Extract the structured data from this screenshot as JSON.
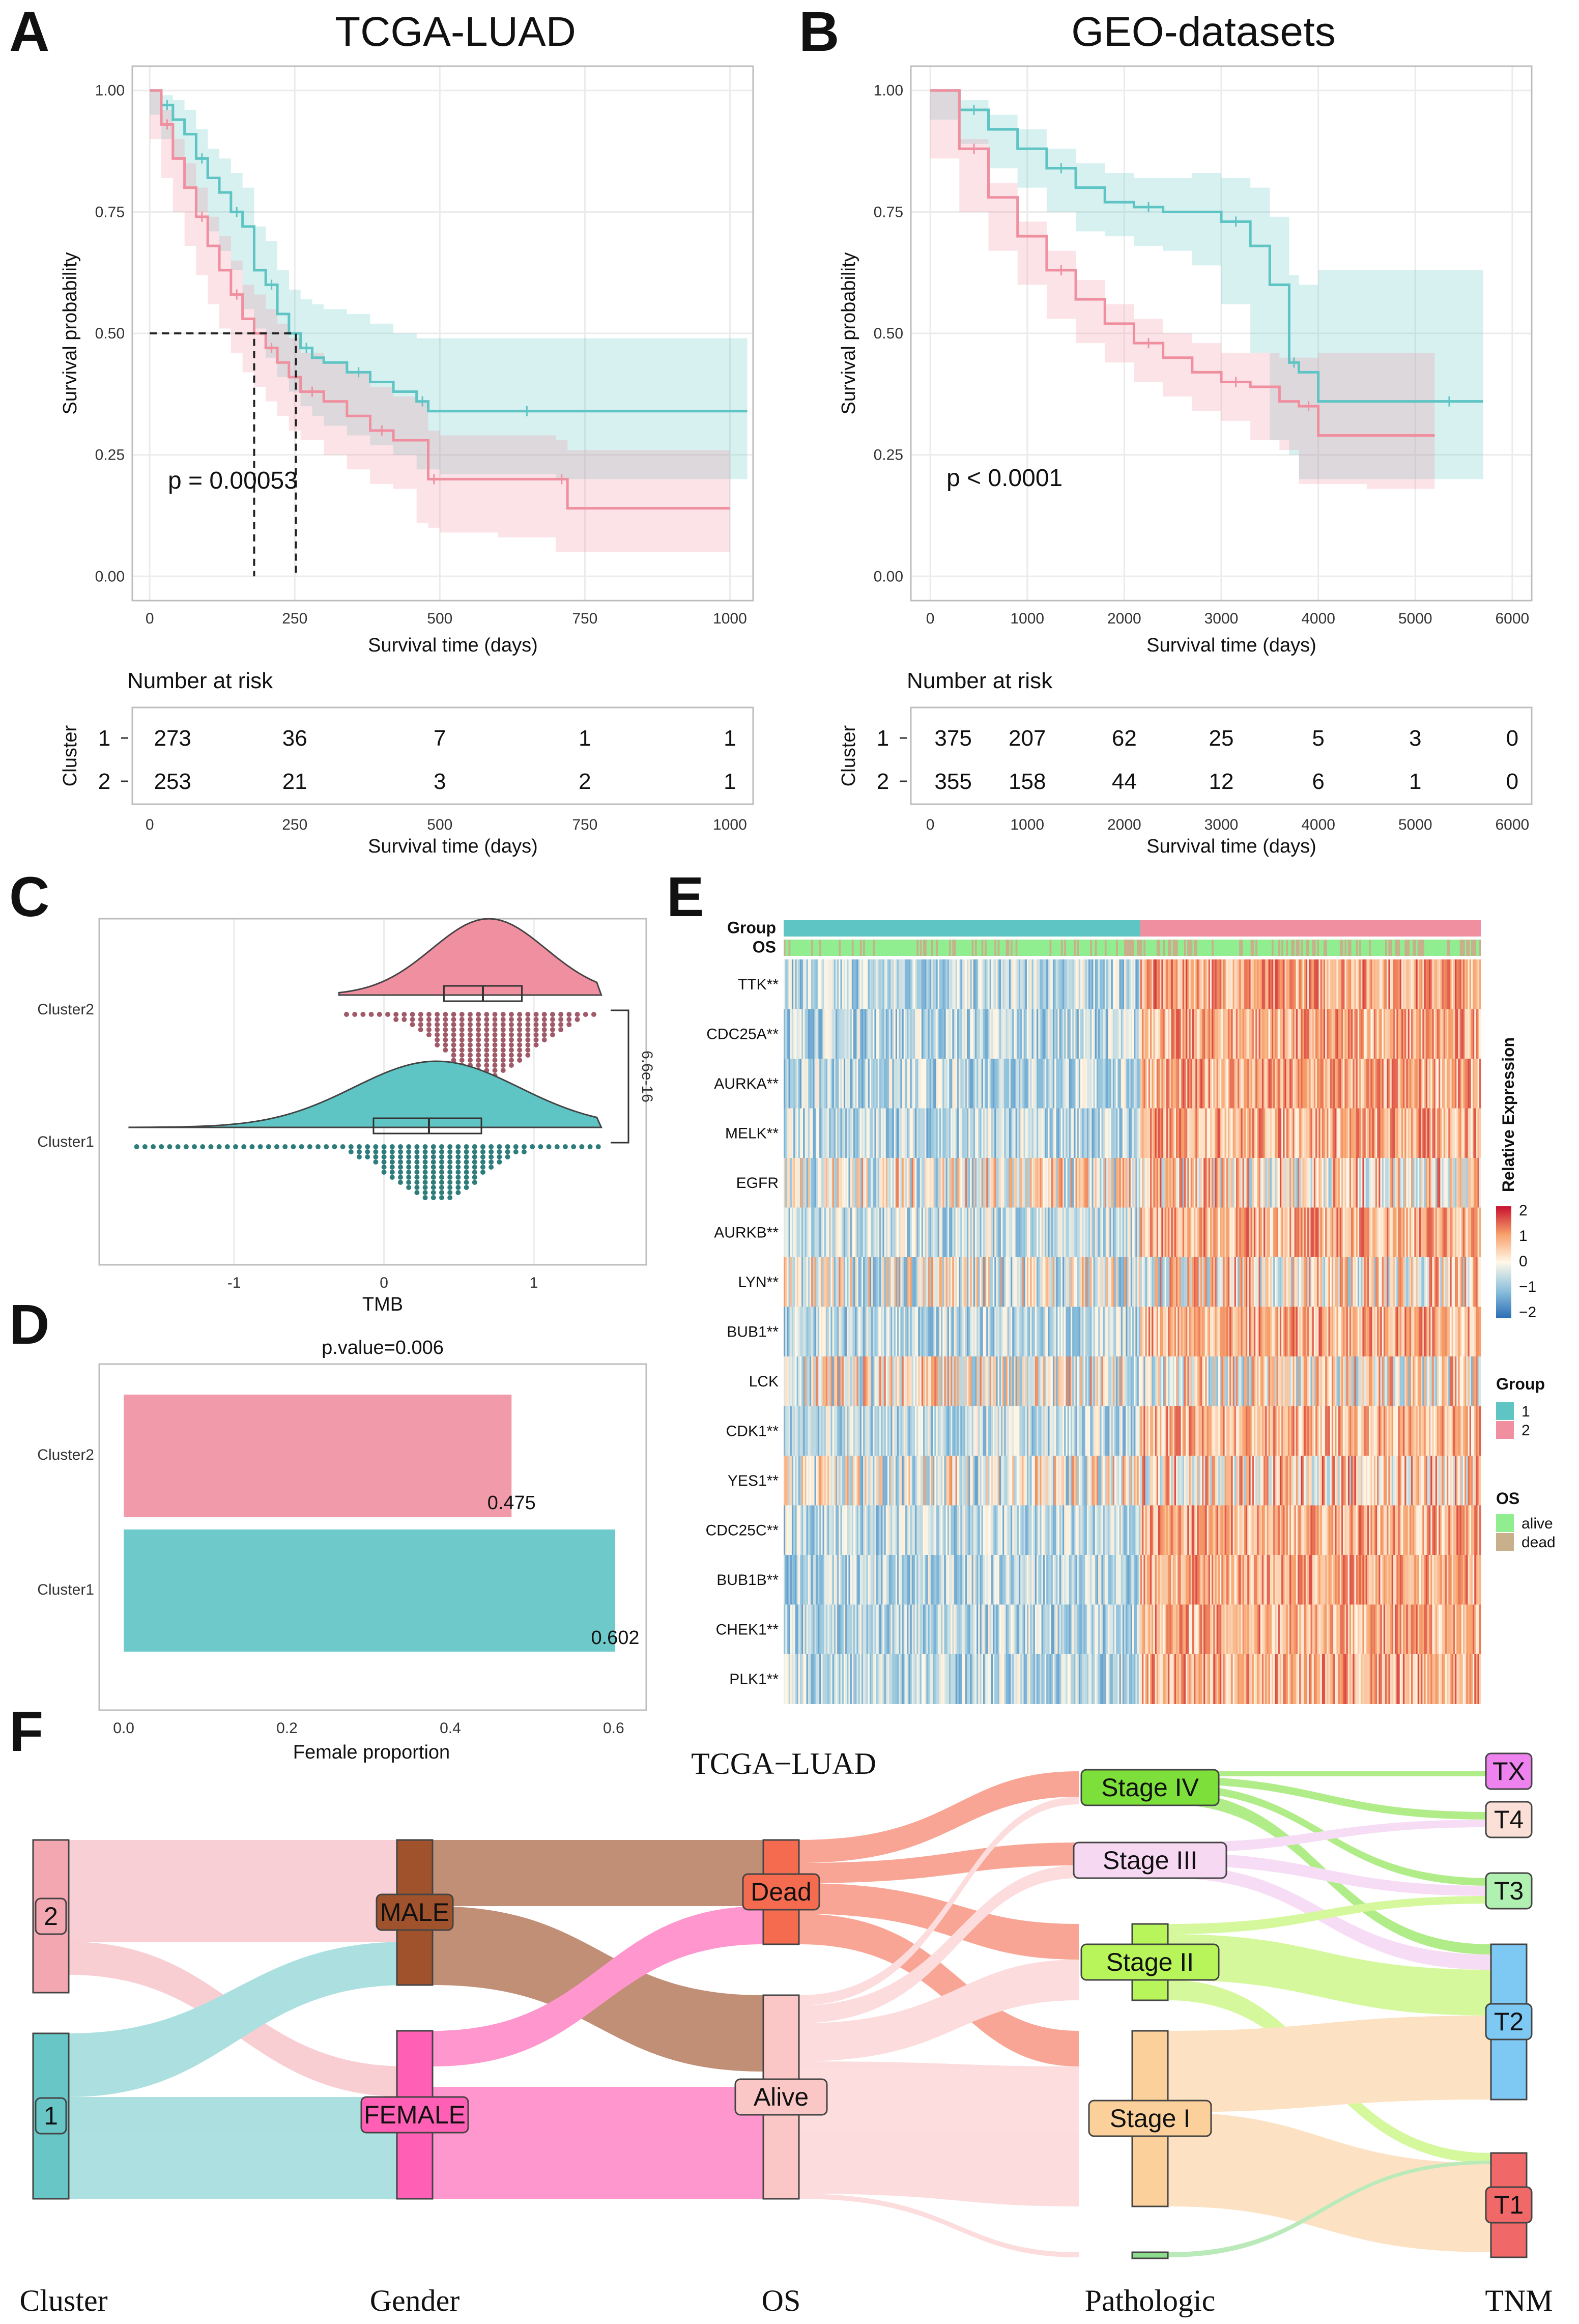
{
  "panel_labels": [
    "A",
    "B",
    "C",
    "D",
    "E",
    "F"
  ],
  "colors": {
    "cluster1": "#5ec4c4",
    "cluster2": "#f08fa0",
    "grid": "#ebebeb"
  },
  "chart_data": [
    {
      "id": "A",
      "type": "line",
      "title": "TCGA-LUAD",
      "xlabel": "Survival time (days)",
      "ylabel": "Survival probability",
      "xlim": [
        -30,
        1040
      ],
      "ylim": [
        -0.05,
        1.05
      ],
      "xticks": [
        0,
        250,
        500,
        750,
        1000
      ],
      "yticks": [
        "0.00",
        "0.25",
        "0.50",
        "0.75",
        "1.00"
      ],
      "pvalue": "p = 0.00053",
      "median_lines": [
        {
          "x": 180,
          "y": 0.5
        },
        {
          "x": 252,
          "y": 0.5
        }
      ],
      "series": [
        {
          "name": "1",
          "color": "#5ec4c4",
          "x": [
            0,
            20,
            40,
            60,
            80,
            100,
            120,
            140,
            160,
            180,
            200,
            220,
            240,
            260,
            280,
            300,
            340,
            380,
            420,
            460,
            480,
            500,
            600,
            700,
            800,
            1030
          ],
          "y": [
            1.0,
            0.97,
            0.94,
            0.91,
            0.86,
            0.82,
            0.79,
            0.75,
            0.72,
            0.63,
            0.6,
            0.54,
            0.5,
            0.47,
            0.45,
            0.44,
            0.42,
            0.4,
            0.38,
            0.36,
            0.34,
            0.34,
            0.34,
            0.34,
            0.34,
            0.34
          ],
          "lower": [
            1.0,
            0.95,
            0.9,
            0.86,
            0.8,
            0.75,
            0.71,
            0.67,
            0.63,
            0.55,
            0.51,
            0.45,
            0.41,
            0.38,
            0.35,
            0.33,
            0.31,
            0.29,
            0.27,
            0.25,
            0.22,
            0.22,
            0.21,
            0.21,
            0.2,
            0.2
          ],
          "upper": [
            1.0,
            0.99,
            0.98,
            0.96,
            0.92,
            0.88,
            0.86,
            0.83,
            0.8,
            0.72,
            0.69,
            0.63,
            0.59,
            0.57,
            0.56,
            0.55,
            0.54,
            0.52,
            0.5,
            0.49,
            0.49,
            0.49,
            0.49,
            0.49,
            0.49,
            0.49
          ]
        },
        {
          "name": "2",
          "color": "#f08fa0",
          "x": [
            0,
            20,
            40,
            60,
            80,
            100,
            120,
            140,
            160,
            180,
            200,
            220,
            240,
            260,
            300,
            340,
            380,
            420,
            460,
            480,
            500,
            600,
            700,
            720,
            1000
          ],
          "y": [
            1.0,
            0.93,
            0.86,
            0.8,
            0.74,
            0.68,
            0.63,
            0.58,
            0.53,
            0.5,
            0.47,
            0.44,
            0.41,
            0.38,
            0.36,
            0.33,
            0.3,
            0.28,
            0.28,
            0.2,
            0.2,
            0.2,
            0.2,
            0.14,
            0.14
          ],
          "lower": [
            1.0,
            0.9,
            0.82,
            0.75,
            0.68,
            0.62,
            0.56,
            0.51,
            0.46,
            0.42,
            0.39,
            0.36,
            0.33,
            0.3,
            0.28,
            0.25,
            0.22,
            0.19,
            0.18,
            0.11,
            0.1,
            0.09,
            0.08,
            0.05,
            0.05
          ],
          "upper": [
            1.0,
            0.96,
            0.9,
            0.85,
            0.8,
            0.74,
            0.7,
            0.65,
            0.6,
            0.58,
            0.55,
            0.52,
            0.49,
            0.46,
            0.44,
            0.42,
            0.39,
            0.37,
            0.36,
            0.3,
            0.29,
            0.29,
            0.28,
            0.26,
            0.25
          ]
        }
      ],
      "risk_table": {
        "title": "Number at risk",
        "ylabel": "Cluster",
        "rows": [
          {
            "label": "1",
            "values": [
              "273",
              "36",
              "7",
              "1",
              "1"
            ]
          },
          {
            "label": "2",
            "values": [
              "253",
              "21",
              "3",
              "2",
              "1"
            ]
          }
        ]
      }
    },
    {
      "id": "B",
      "type": "line",
      "title": "GEO-datasets",
      "xlabel": "Survival time (days)",
      "ylabel": "Survival probability",
      "xlim": [
        -200,
        6200
      ],
      "ylim": [
        -0.05,
        1.05
      ],
      "xticks": [
        0,
        1000,
        2000,
        3000,
        4000,
        5000,
        6000
      ],
      "yticks": [
        "0.00",
        "0.25",
        "0.50",
        "0.75",
        "1.00"
      ],
      "pvalue": "p < 0.0001",
      "series": [
        {
          "name": "1",
          "color": "#5ec4c4",
          "x": [
            0,
            300,
            600,
            900,
            1200,
            1500,
            1800,
            2100,
            2400,
            2700,
            3000,
            3300,
            3500,
            3700,
            3800,
            4000,
            5000,
            5700
          ],
          "y": [
            1.0,
            0.96,
            0.92,
            0.88,
            0.84,
            0.8,
            0.77,
            0.76,
            0.75,
            0.75,
            0.73,
            0.68,
            0.6,
            0.44,
            0.42,
            0.36,
            0.36,
            0.36
          ],
          "lower": [
            1.0,
            0.94,
            0.89,
            0.84,
            0.8,
            0.75,
            0.71,
            0.7,
            0.68,
            0.67,
            0.64,
            0.56,
            0.46,
            0.28,
            0.25,
            0.2,
            0.2,
            0.2
          ],
          "upper": [
            1.0,
            0.98,
            0.95,
            0.92,
            0.88,
            0.85,
            0.83,
            0.82,
            0.82,
            0.83,
            0.82,
            0.8,
            0.74,
            0.62,
            0.6,
            0.63,
            0.63,
            0.63
          ]
        },
        {
          "name": "2",
          "color": "#f08fa0",
          "x": [
            0,
            300,
            600,
            900,
            1200,
            1500,
            1800,
            2100,
            2400,
            2700,
            3000,
            3300,
            3600,
            3800,
            4000,
            4500,
            5200
          ],
          "y": [
            1.0,
            0.88,
            0.78,
            0.7,
            0.63,
            0.57,
            0.52,
            0.48,
            0.45,
            0.42,
            0.4,
            0.39,
            0.36,
            0.35,
            0.29,
            0.29,
            0.29
          ],
          "lower": [
            1.0,
            0.86,
            0.75,
            0.67,
            0.6,
            0.53,
            0.48,
            0.44,
            0.4,
            0.37,
            0.34,
            0.32,
            0.28,
            0.26,
            0.19,
            0.19,
            0.18
          ],
          "upper": [
            1.0,
            0.9,
            0.81,
            0.73,
            0.67,
            0.61,
            0.56,
            0.53,
            0.5,
            0.48,
            0.46,
            0.46,
            0.45,
            0.45,
            0.46,
            0.46,
            0.46
          ]
        }
      ],
      "risk_table": {
        "title": "Number at risk",
        "ylabel": "Cluster",
        "rows": [
          {
            "label": "1",
            "values": [
              "375",
              "207",
              "62",
              "25",
              "5",
              "3",
              "0"
            ]
          },
          {
            "label": "2",
            "values": [
              "355",
              "158",
              "44",
              "12",
              "6",
              "1",
              "0"
            ]
          }
        ]
      }
    },
    {
      "id": "C",
      "type": "scatter",
      "subtype": "raincloud",
      "xlabel": "TMB",
      "xlim": [
        -1.9,
        1.75
      ],
      "xticks": [
        -1,
        0,
        1
      ],
      "categories": [
        "Cluster2",
        "Cluster1"
      ],
      "significance": "6.6e-16",
      "groups": [
        {
          "name": "Cluster2",
          "color": "#f08fa0",
          "min": -0.3,
          "q1": 0.4,
          "median": 0.66,
          "q3": 0.92,
          "max": 1.45,
          "density_peak": 0.7
        },
        {
          "name": "Cluster1",
          "color": "#5ec4c4",
          "min": -1.7,
          "q1": -0.07,
          "median": 0.3,
          "q3": 0.65,
          "max": 1.45,
          "density_peak": 0.35
        }
      ]
    },
    {
      "id": "D",
      "type": "bar",
      "orientation": "horizontal",
      "title": "p.value=0.006",
      "xlabel": "Female proportion",
      "categories": [
        "Cluster2",
        "Cluster1"
      ],
      "values": [
        0.475,
        0.602
      ],
      "value_labels": [
        "0.475",
        "0.602"
      ],
      "xlim": [
        -0.03,
        0.64
      ],
      "xticks": [
        "0.0",
        "0.2",
        "0.4",
        "0.6"
      ]
    },
    {
      "id": "E",
      "type": "heatmap",
      "annotation_rows": [
        "Group",
        "OS"
      ],
      "genes": [
        "TTK**",
        "CDC25A**",
        "AURKA**",
        "MELK**",
        "EGFR",
        "AURKB**",
        "LYN**",
        "BUB1**",
        "LCK",
        "CDK1**",
        "YES1**",
        "CDC25C**",
        "BUB1B**",
        "CHEK1**",
        "PLK1**"
      ],
      "group1_mean": [
        -0.6,
        -0.6,
        -0.6,
        -0.6,
        0.0,
        -0.5,
        -0.1,
        -0.6,
        0.0,
        -0.55,
        -0.1,
        -0.6,
        -0.6,
        -0.6,
        -0.6
      ],
      "group2_mean": [
        0.9,
        0.8,
        0.8,
        0.8,
        0.3,
        0.8,
        0.2,
        0.8,
        0.1,
        0.7,
        0.4,
        0.8,
        0.8,
        0.8,
        0.8
      ],
      "legend_title": "Relative Expression",
      "scale_ticks": [
        "2",
        "1",
        "0",
        "−1",
        "−2"
      ],
      "group_legend": {
        "title": "Group",
        "items": [
          {
            "label": "1",
            "color": "#5ec4c4"
          },
          {
            "label": "2",
            "color": "#f08fa0"
          }
        ]
      },
      "os_legend": {
        "title": "OS",
        "items": [
          {
            "label": "alive",
            "color": "#90ee90"
          },
          {
            "label": "dead",
            "color": "#c8b08c"
          }
        ]
      }
    },
    {
      "id": "F",
      "type": "sankey",
      "title": "TCGA−LUAD",
      "axes": [
        "Cluster",
        "Gender",
        "OS",
        "Pathologic",
        "TNM"
      ],
      "nodes": [
        {
          "id": "c2",
          "label": "2",
          "axis": "Cluster",
          "color": "#f3a7b0"
        },
        {
          "id": "c1",
          "label": "1",
          "axis": "Cluster",
          "color": "#69c6c6"
        },
        {
          "id": "male",
          "label": "MALE",
          "axis": "Gender",
          "color": "#a0522d"
        },
        {
          "id": "female",
          "label": "FEMALE",
          "axis": "Gender",
          "color": "#ff5fb5"
        },
        {
          "id": "dead",
          "label": "Dead",
          "axis": "OS",
          "color": "#f56b50"
        },
        {
          "id": "alive",
          "label": "Alive",
          "axis": "OS",
          "color": "#fbc6c6"
        },
        {
          "id": "s4",
          "label": "Stage IV",
          "axis": "Pathologic",
          "color": "#7de03a"
        },
        {
          "id": "s3",
          "label": "Stage III",
          "axis": "Pathologic",
          "color": "#f7d8f2"
        },
        {
          "id": "s2",
          "label": "Stage II",
          "axis": "Pathologic",
          "color": "#b8f55a"
        },
        {
          "id": "s1",
          "label": "Stage I",
          "axis": "Pathologic",
          "color": "#fbd09a"
        },
        {
          "id": "sna",
          "label": "",
          "axis": "Pathologic",
          "color": "#8ddc8d"
        },
        {
          "id": "tx",
          "label": "TX",
          "axis": "TNM",
          "color": "#ee82ee"
        },
        {
          "id": "t4",
          "label": "T4",
          "axis": "TNM",
          "color": "#fbe0d8"
        },
        {
          "id": "t3",
          "label": "T3",
          "axis": "TNM",
          "color": "#b0f0b0"
        },
        {
          "id": "t2",
          "label": "T2",
          "axis": "TNM",
          "color": "#7ec8f4"
        },
        {
          "id": "t1",
          "label": "T1",
          "axis": "TNM",
          "color": "#f06868"
        }
      ]
    }
  ]
}
